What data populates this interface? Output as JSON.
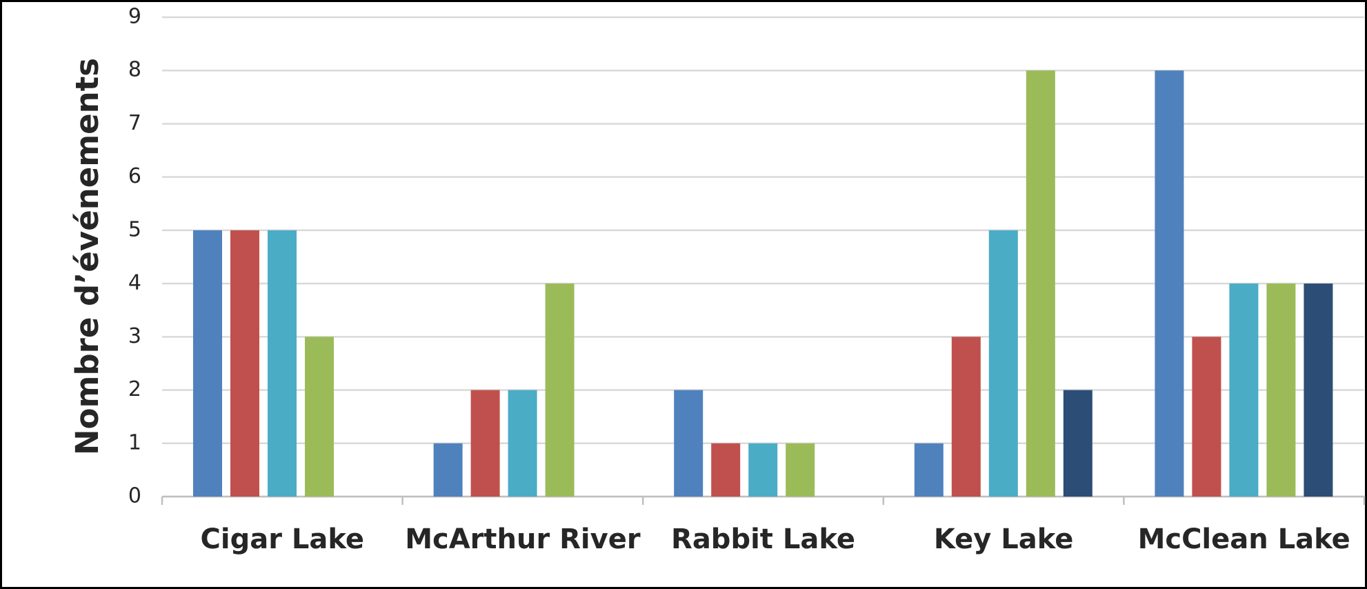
{
  "chart_data": {
    "type": "bar",
    "y_label": "Nombre d’événements",
    "categories": [
      "Cigar Lake",
      "McArthur River",
      "Rabbit Lake",
      "Key Lake",
      "McClean Lake"
    ],
    "series": [
      {
        "color": "#4f81bd",
        "values": [
          5,
          1,
          2,
          1,
          8
        ]
      },
      {
        "color": "#c0504d",
        "values": [
          5,
          2,
          1,
          3,
          3
        ]
      },
      {
        "color": "#4bacc6",
        "values": [
          5,
          2,
          1,
          5,
          4
        ]
      },
      {
        "color": "#9bbb59",
        "values": [
          3,
          4,
          1,
          8,
          4
        ]
      },
      {
        "color": "#2c4d75",
        "values": [
          null,
          null,
          null,
          2,
          4
        ]
      }
    ],
    "ylim": [
      0,
      9
    ],
    "yticks": [
      0,
      1,
      2,
      3,
      4,
      5,
      6,
      7,
      8,
      9
    ],
    "grid": true
  }
}
